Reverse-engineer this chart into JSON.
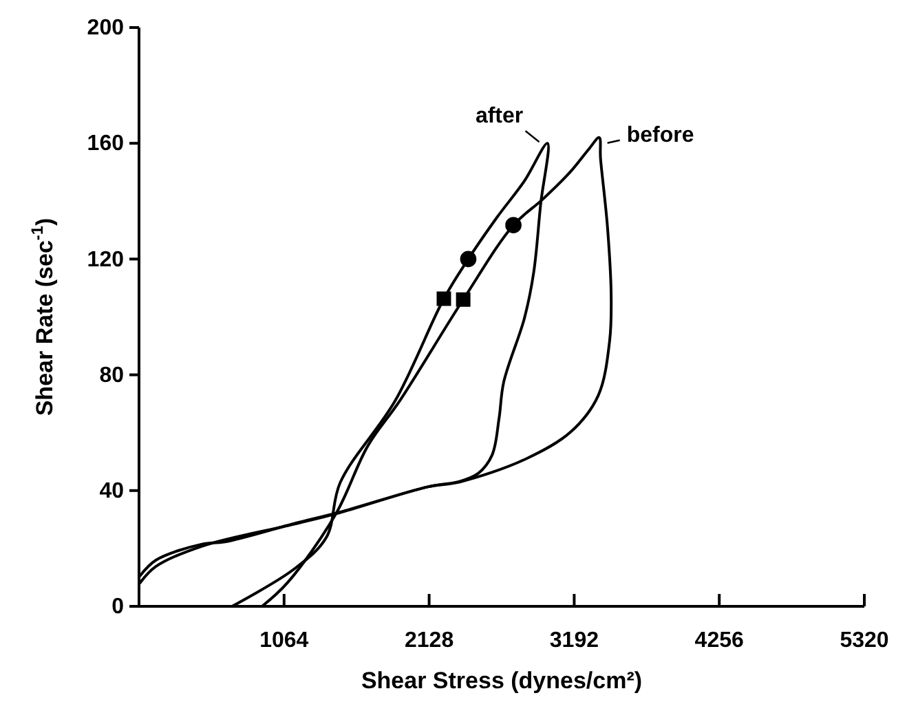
{
  "chart_data": {
    "type": "line",
    "xlabel": "Shear Stress (dynes/cm²)",
    "ylabel": "Shear Rate (sec$^{-1}$)",
    "xlim": [
      0,
      5320
    ],
    "xticks": [
      1064,
      2128,
      3192,
      4256,
      5320
    ],
    "ylim": [
      0,
      200
    ],
    "yticks": [
      0,
      40,
      80,
      120,
      160,
      200
    ],
    "grid": false,
    "line_style": "solid",
    "series": [
      {
        "color": "#000000",
        "marker": "none",
        "x": [
          7,
          125,
          463,
          631,
          1138,
          1476,
          2118,
          2354,
          2489,
          2590,
          2641,
          2675,
          2827,
          2895,
          2946,
          2996,
          2827,
          2624,
          2415,
          2236,
          1881,
          1476,
          1375,
          1138,
          682
        ],
        "values": [
          10.5,
          16,
          21.5,
          22.3,
          28.6,
          32.6,
          41.3,
          43.2,
          46,
          52.3,
          65,
          77.5,
          99.6,
          115.4,
          139,
          160,
          147,
          134.3,
          120,
          106.3,
          71.2,
          42.8,
          23.9,
          12.9,
          0
        ]
      },
      {
        "color": "#000000",
        "marker": "none",
        "x": [
          7,
          125,
          463,
          1138,
          1476,
          2118,
          2354,
          2827,
          3165,
          3368,
          3452,
          3463,
          3436,
          3385,
          3375,
          3301,
          3165,
          2962,
          2746,
          2378,
          1915,
          1679,
          1442,
          1088,
          902
        ],
        "values": [
          8.1,
          13.8,
          20.8,
          28.4,
          32.4,
          41.3,
          43,
          50.7,
          60.2,
          72.8,
          91.8,
          107.5,
          131.1,
          154.8,
          162,
          158.1,
          150.2,
          140.7,
          131.7,
          106,
          71.2,
          55.5,
          31.8,
          8.1,
          0
        ]
      },
      {
        "type": "scatter",
        "color": "#000000",
        "marker": "circle",
        "x": [
          2415,
          2746
        ],
        "values": [
          120,
          131.7
        ]
      },
      {
        "type": "scatter",
        "color": "#000000",
        "marker": "square",
        "x": [
          2236,
          2378
        ],
        "values": [
          106.3,
          106
        ]
      }
    ],
    "annotations": [
      {
        "text": "after",
        "x": 2996,
        "y": 160
      },
      {
        "text": "before",
        "x": 3375,
        "y": 162
      }
    ]
  }
}
